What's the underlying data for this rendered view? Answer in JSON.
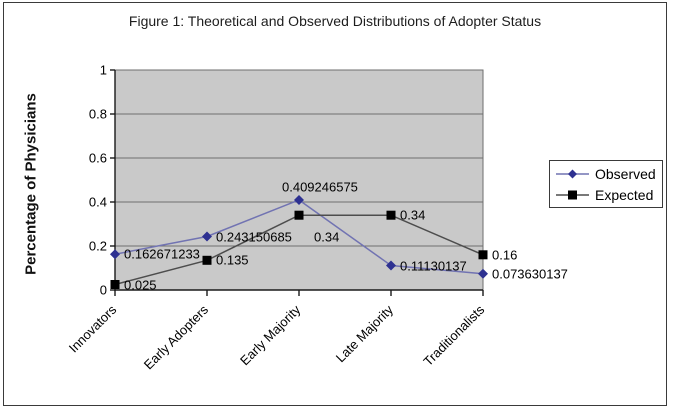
{
  "chart_data": {
    "type": "line",
    "title": "Figure 1: Theoretical and Observed Distributions of Adopter Status",
    "ylabel": "Percentage of Physicians",
    "categories": [
      "Innovators",
      "Early Adopters",
      "Early Majority",
      "Late Majority",
      "Traditionalists"
    ],
    "series": [
      {
        "name": "Observed",
        "marker": "diamond",
        "line_color": "#7173b2",
        "marker_color": "#2e3191",
        "values": [
          0.162671233,
          0.243150685,
          0.409246575,
          0.11130137,
          0.073630137
        ],
        "labels": [
          "0.162671233",
          "0.243150685",
          "0.409246575",
          "0.11130137",
          "0.073630137"
        ],
        "label_pos": [
          "right",
          "right",
          "above",
          "right",
          "right"
        ]
      },
      {
        "name": "Expected",
        "marker": "square",
        "line_color": "#4d4d4d",
        "marker_color": "#000000",
        "values": [
          0.025,
          0.135,
          0.34,
          0.34,
          0.16
        ],
        "labels": [
          "0.025",
          "0.135",
          "0.34",
          "0.34",
          "0.16"
        ],
        "label_pos": [
          "right",
          "right",
          "below-right",
          "right",
          "right"
        ]
      }
    ],
    "ylim": [
      0,
      1
    ],
    "yticks": [
      0,
      0.2,
      0.4,
      0.6,
      0.8,
      1
    ],
    "ytick_labels": [
      "0",
      "0.2",
      "0.4",
      "0.6",
      "0.8",
      "1"
    ],
    "grid": true,
    "legend_position": "right",
    "colors": {
      "plot_background": "#c9c9c9",
      "gridline": "#6e6e6e",
      "axis": "#1a1a1a",
      "frame_border": "#3a3a3a"
    }
  }
}
